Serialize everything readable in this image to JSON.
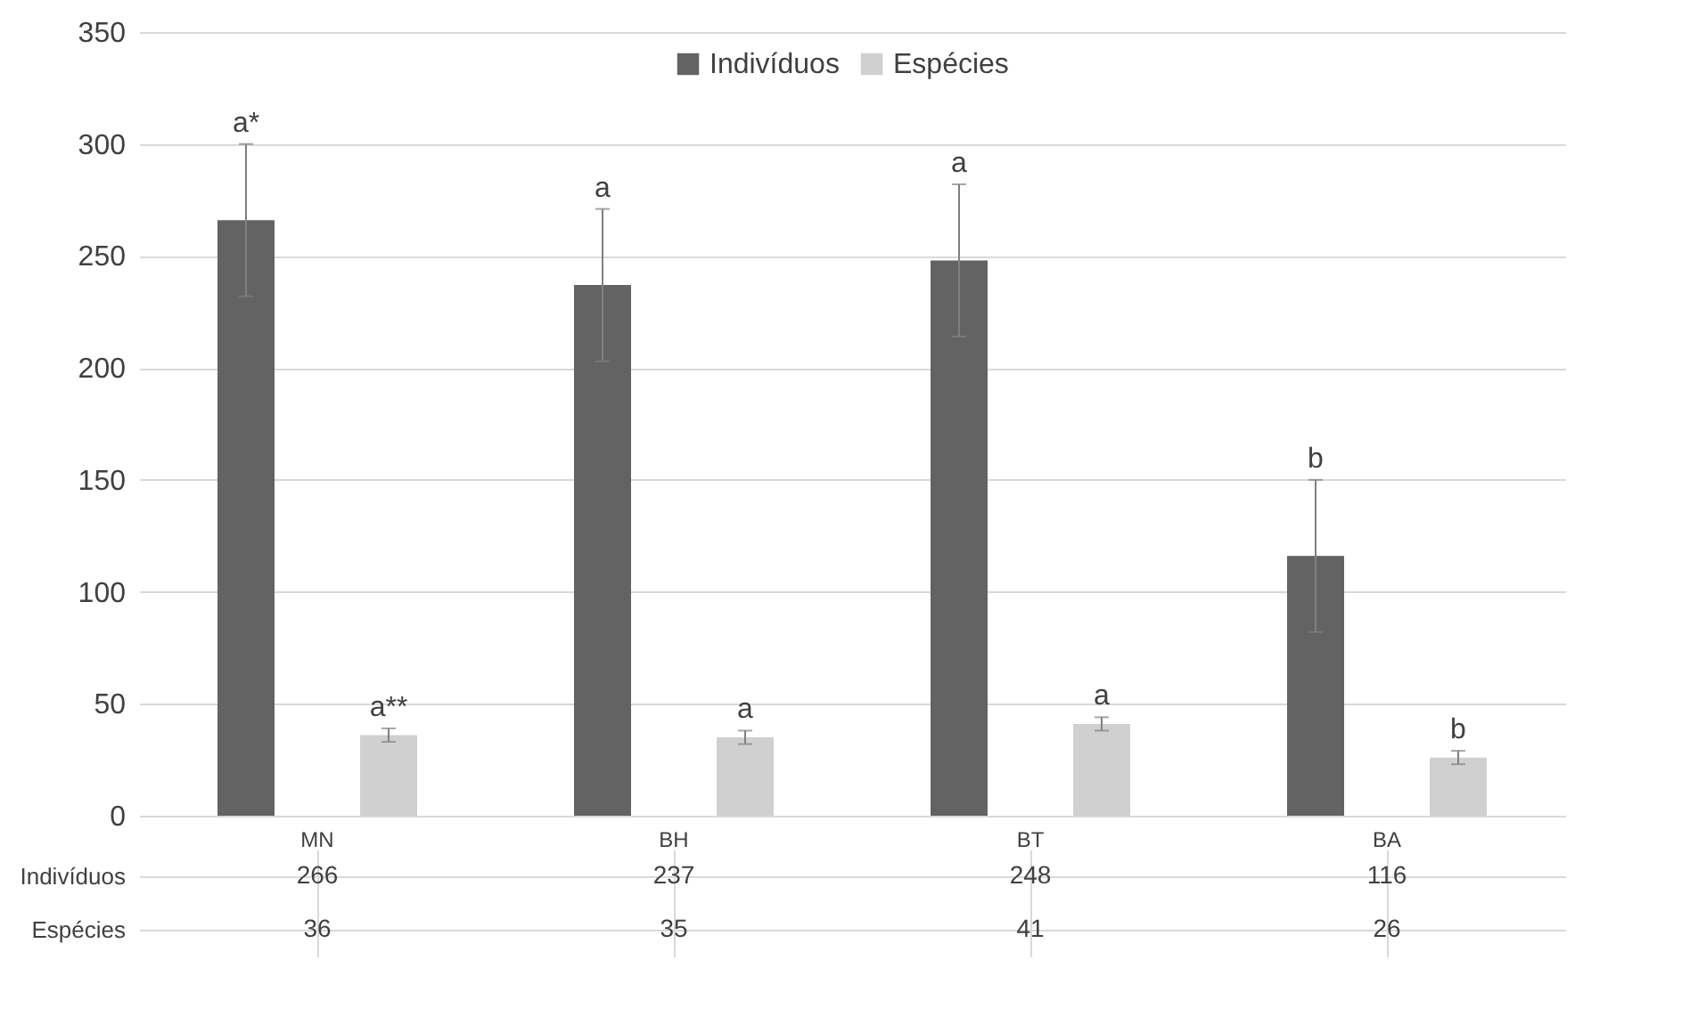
{
  "chart_data": {
    "type": "bar",
    "categories": [
      "MN",
      "BH",
      "BT",
      "BA"
    ],
    "series": [
      {
        "name": "Indivíduos",
        "color": "#636363",
        "values": [
          266,
          237,
          248,
          116
        ],
        "errors": [
          34,
          34,
          34,
          34
        ]
      },
      {
        "name": "Espécies",
        "color": "#d0d0d0",
        "values": [
          36,
          35,
          41,
          26
        ],
        "errors": [
          3,
          3,
          3,
          3
        ]
      }
    ],
    "ylim": [
      0,
      350
    ],
    "yticks": [
      0,
      50,
      100,
      150,
      200,
      250,
      300,
      350
    ],
    "grid": "y",
    "legend": "top",
    "data_labels": true,
    "annotations": [
      "a*",
      "a**",
      "a",
      "a",
      "a",
      "a",
      "b",
      "b"
    ]
  }
}
